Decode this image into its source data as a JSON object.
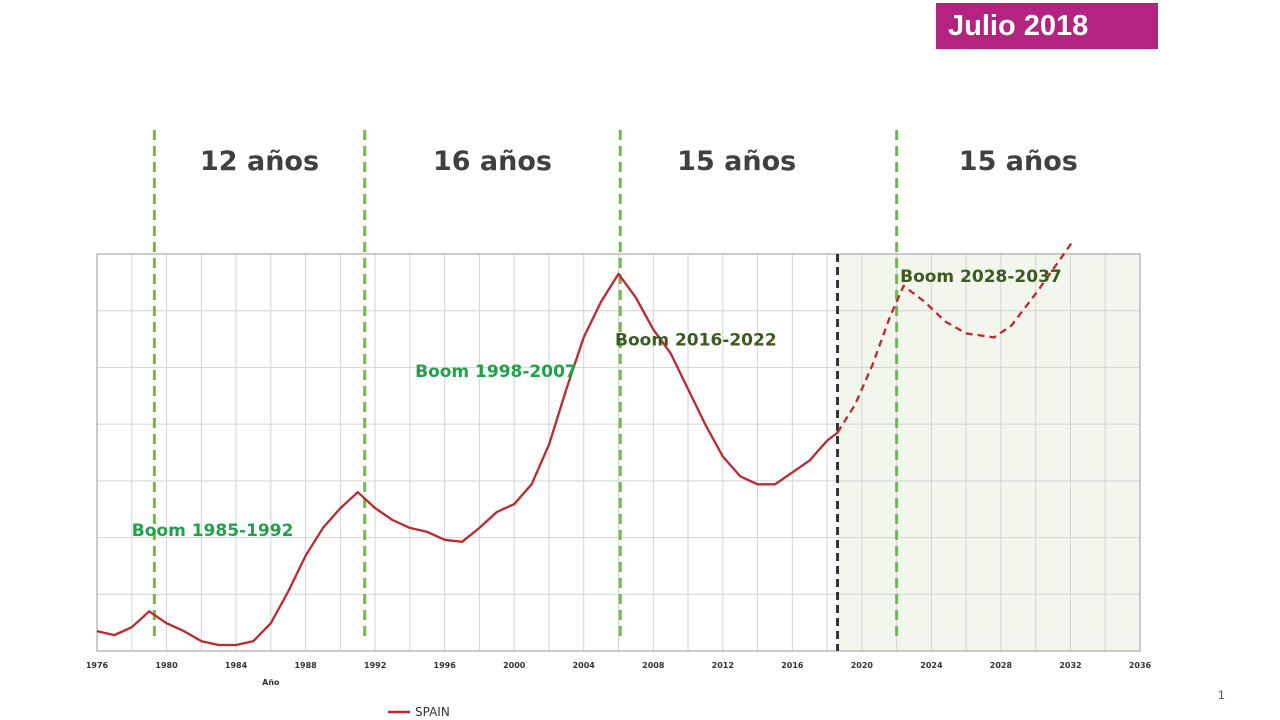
{
  "header": {
    "badge": "Julio 2018"
  },
  "page_number": "1",
  "chart_data": {
    "type": "line",
    "xlabel": "Año",
    "ylabel": "",
    "xlim": [
      1976,
      2036
    ],
    "x_ticks": [
      "1976",
      "1980",
      "1984",
      "1988",
      "1992",
      "1996",
      "2000",
      "2004",
      "2008",
      "2012",
      "2016",
      "2020",
      "2024",
      "2028",
      "2032",
      "2036"
    ],
    "grid": true,
    "legend": {
      "position": "bottom",
      "entries": [
        "SPAIN"
      ]
    },
    "forecast_start_year": 2018.6,
    "series": [
      {
        "name": "SPAIN",
        "color": "#c0282d",
        "style": "solid",
        "points": [
          [
            1976,
            5
          ],
          [
            1977,
            4
          ],
          [
            1978,
            6
          ],
          [
            1979,
            10
          ],
          [
            1980,
            7
          ],
          [
            1981,
            5
          ],
          [
            1982,
            2.5
          ],
          [
            1983,
            1.5
          ],
          [
            1984,
            1.5
          ],
          [
            1985,
            2.5
          ],
          [
            1986,
            7
          ],
          [
            1987,
            15
          ],
          [
            1988,
            24
          ],
          [
            1989,
            31
          ],
          [
            1990,
            36
          ],
          [
            1991,
            40
          ],
          [
            1992,
            36
          ],
          [
            1993,
            33
          ],
          [
            1994,
            31
          ],
          [
            1995,
            30
          ],
          [
            1996,
            28
          ],
          [
            1997,
            27.5
          ],
          [
            1998,
            31
          ],
          [
            1999,
            35
          ],
          [
            2000,
            37
          ],
          [
            2001,
            42
          ],
          [
            2002,
            52
          ],
          [
            2003,
            66
          ],
          [
            2004,
            79
          ],
          [
            2005,
            88
          ],
          [
            2006,
            95
          ],
          [
            2007,
            89
          ],
          [
            2008,
            81
          ],
          [
            2009,
            75
          ],
          [
            2010,
            66
          ],
          [
            2011,
            57
          ],
          [
            2012,
            49
          ],
          [
            2013,
            44
          ],
          [
            2014,
            42
          ],
          [
            2015,
            42
          ],
          [
            2016,
            45
          ],
          [
            2017,
            48
          ],
          [
            2018,
            53
          ],
          [
            2018.6,
            55
          ]
        ]
      },
      {
        "name": "",
        "color": "#c0282d",
        "style": "dashed",
        "points": [
          [
            2018.6,
            55
          ],
          [
            2019.6,
            62
          ],
          [
            2020.6,
            72
          ],
          [
            2021.6,
            84
          ],
          [
            2022.4,
            92
          ],
          [
            2023.6,
            88
          ],
          [
            2024.8,
            83
          ],
          [
            2026,
            80
          ],
          [
            2027.6,
            79
          ],
          [
            2028.6,
            82
          ],
          [
            2030,
            90
          ],
          [
            2031.3,
            98
          ],
          [
            2032.1,
            103
          ]
        ]
      }
    ],
    "period_labels": [
      {
        "text": "12 años",
        "x_from": 1979.3,
        "x_to": 1991.4
      },
      {
        "text": "16 años",
        "x_from": 1991.4,
        "x_to": 2006.1
      },
      {
        "text": "15 años",
        "x_from": 2006.1,
        "x_to": 2019.5
      },
      {
        "text": "15 años",
        "x_from": 2022.0,
        "x_to": 2036
      }
    ],
    "annotations": [
      {
        "text": "Boom 1985-1992",
        "x": 1978.0,
        "y": 29,
        "color": "#1fa34a"
      },
      {
        "text": "Boom 1998-2007",
        "x": 1994.3,
        "y": 69,
        "color": "#1fa34a"
      },
      {
        "text": "Boom 2016-2022",
        "x": 2005.8,
        "y": 77,
        "color": "#3d5a1e"
      },
      {
        "text": "Boom 2028-2037",
        "x": 2022.2,
        "y": 93,
        "color": "#3d5a1e"
      }
    ],
    "cycle_lines": [
      1979.3,
      1991.4,
      2006.1,
      2022.0
    ],
    "cycle_line_color": "#6abf40"
  }
}
